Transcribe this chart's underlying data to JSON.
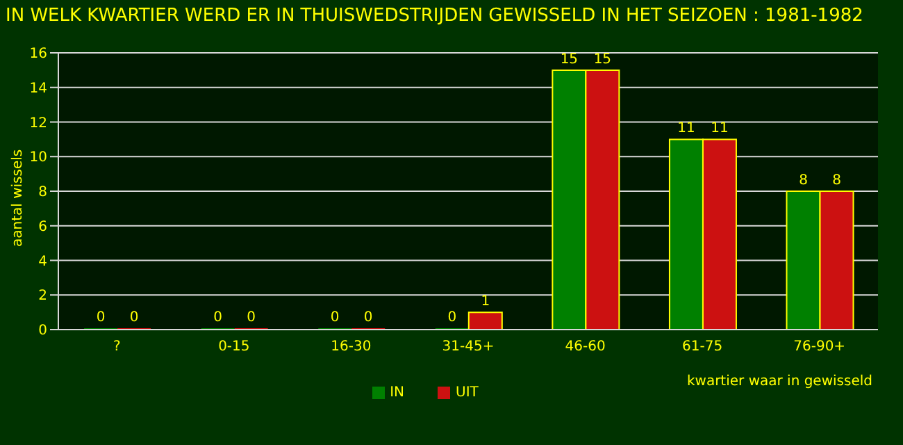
{
  "chart_data": {
    "type": "bar",
    "title": "IN WELK KWARTIER WERD ER IN THUISWEDSTRIJDEN GEWISSELD IN HET SEIZOEN : 1981-1982",
    "xlabel": "kwartier waar in gewisseld",
    "ylabel": "aantal wissels",
    "categories": [
      "?",
      "0-15",
      "16-30",
      "31-45+",
      "46-60",
      "61-75",
      "76-90+"
    ],
    "series": [
      {
        "name": "IN",
        "color": "#008000",
        "values": [
          0,
          0,
          0,
          0,
          15,
          11,
          8
        ]
      },
      {
        "name": "UIT",
        "color": "#cc1111",
        "values": [
          0,
          0,
          0,
          1,
          15,
          11,
          8
        ]
      }
    ],
    "ylim": [
      0,
      16
    ],
    "yticks": [
      0,
      2,
      4,
      6,
      8,
      10,
      12,
      14,
      16
    ],
    "grid": "y",
    "legend": "bottom",
    "data_labels": true
  }
}
